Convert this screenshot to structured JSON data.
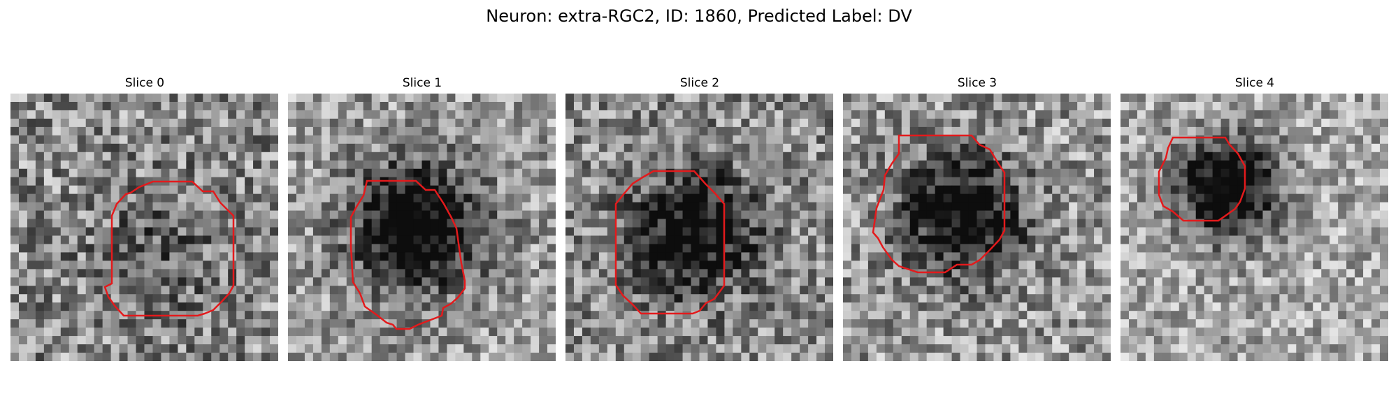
{
  "figure": {
    "title": "Neuron: extra-RGC2, ID: 1860, Predicted Label: DV"
  },
  "panels": [
    {
      "title": "Slice 0",
      "dark_blob": 0.18,
      "background_level": 0.55,
      "noise": 0.32,
      "contour_color": "#e31a1c"
    },
    {
      "title": "Slice 1",
      "dark_blob": 0.78,
      "background_level": 0.62,
      "noise": 0.28,
      "contour_color": "#e31a1c"
    },
    {
      "title": "Slice 2",
      "dark_blob": 0.62,
      "background_level": 0.55,
      "noise": 0.3,
      "contour_color": "#e31a1c"
    },
    {
      "title": "Slice 3",
      "dark_blob": 0.7,
      "background_level": 0.6,
      "noise": 0.3,
      "contour_color": "#e31a1c"
    },
    {
      "title": "Slice 4",
      "dark_blob": 0.8,
      "background_level": 0.66,
      "noise": 0.26,
      "contour_color": "#e31a1c"
    }
  ],
  "colors": {
    "contour": "#e31a1c",
    "background": "#ffffff"
  }
}
